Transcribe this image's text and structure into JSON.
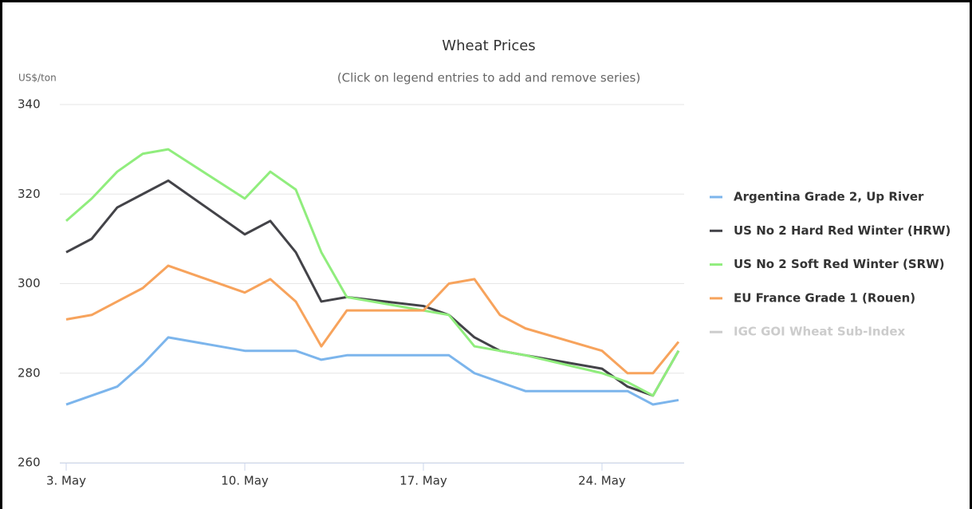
{
  "chart_data": {
    "type": "line",
    "title": "Wheat Prices",
    "subtitle": "(Click on legend entries to add and remove series)",
    "y_label": "US$/ton",
    "x": [
      3,
      4,
      5,
      6,
      7,
      10,
      11,
      12,
      13,
      14,
      17,
      18,
      19,
      20,
      21,
      24,
      25,
      26,
      27
    ],
    "xlim": [
      2.75,
      27.22
    ],
    "xticks": [
      {
        "value": 3,
        "label": "3. May"
      },
      {
        "value": 10,
        "label": "10. May"
      },
      {
        "value": 17,
        "label": "17. May"
      },
      {
        "value": 24,
        "label": "24. May"
      }
    ],
    "ylim": [
      260,
      340
    ],
    "yticks": [
      260,
      280,
      300,
      320,
      340
    ],
    "grid": true,
    "legend": "right",
    "series": [
      {
        "name": "Argentina Grade 2, Up River",
        "color": "#7cb5ec",
        "values": [
          273,
          275,
          277,
          282,
          288,
          285,
          285,
          285,
          283,
          284,
          284,
          284,
          280,
          278,
          276,
          276,
          276,
          273,
          274
        ]
      },
      {
        "name": "US No 2 Hard Red Winter (HRW)",
        "color": "#434348",
        "values": [
          307,
          310,
          317,
          320,
          323,
          311,
          314,
          307,
          296,
          297,
          295,
          293,
          288,
          285,
          284,
          281,
          277,
          275,
          285
        ]
      },
      {
        "name": "US No 2 Soft Red Winter (SRW)",
        "color": "#90ed7d",
        "values": [
          314,
          319,
          325,
          329,
          330,
          319,
          325,
          321,
          307,
          297,
          294,
          293,
          286,
          285,
          284,
          280,
          278,
          275,
          285
        ]
      },
      {
        "name": "EU France Grade 1 (Rouen)",
        "color": "#f7a35c",
        "values": [
          292,
          293,
          296,
          299,
          304,
          298,
          301,
          296,
          286,
          294,
          294,
          300,
          301,
          293,
          290,
          285,
          280,
          280,
          287
        ]
      }
    ],
    "hidden_series": [
      {
        "name": "IGC GOI Wheat Sub-Index",
        "color": "#cccccc"
      }
    ]
  }
}
